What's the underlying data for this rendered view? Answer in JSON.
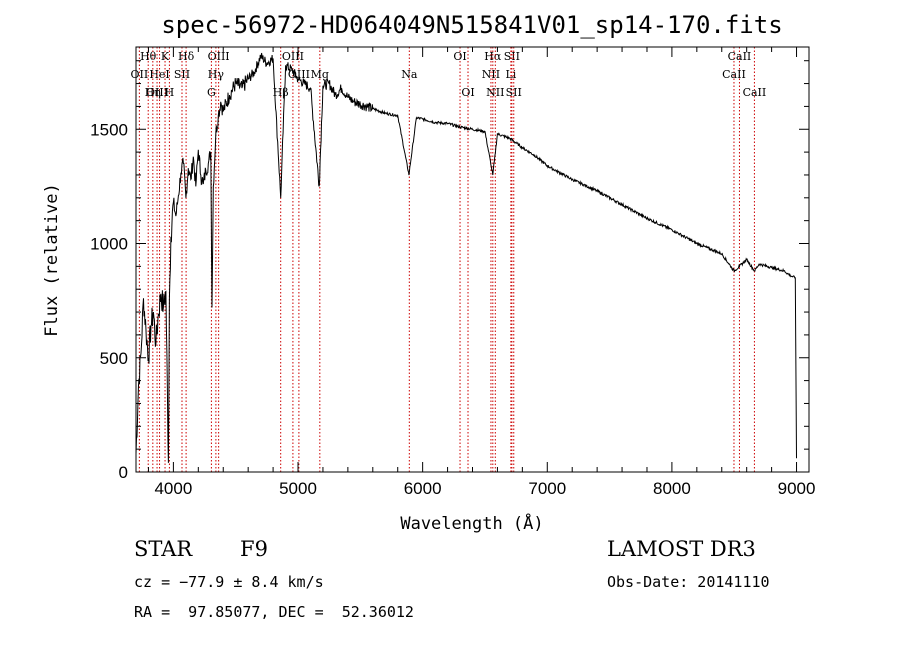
{
  "chart_data": {
    "type": "line",
    "title": "spec-56972-HD064049N515841V01_sp14-170.fits",
    "xlabel": "Wavelength (Å)",
    "ylabel": "Flux (relative)",
    "xlim": [
      3700,
      9100
    ],
    "ylim": [
      0,
      1860
    ],
    "xticks": [
      4000,
      5000,
      6000,
      7000,
      8000,
      9000
    ],
    "xtick_labels": [
      "4000",
      "5000",
      "6000",
      "7000",
      "8000",
      "9000"
    ],
    "yticks": [
      0,
      500,
      1000,
      1500
    ],
    "ytick_labels": [
      "0",
      "500",
      "1000",
      "1500"
    ],
    "grid": false,
    "series": [
      {
        "name": "spectrum",
        "x": [
          3700,
          3720,
          3740,
          3760,
          3780,
          3800,
          3820,
          3840,
          3860,
          3880,
          3900,
          3920,
          3940,
          3960,
          3968,
          3980,
          4000,
          4020,
          4040,
          4060,
          4080,
          4100,
          4120,
          4140,
          4160,
          4180,
          4200,
          4220,
          4240,
          4260,
          4280,
          4300,
          4310,
          4320,
          4340,
          4360,
          4380,
          4400,
          4450,
          4500,
          4550,
          4600,
          4650,
          4700,
          4750,
          4800,
          4861,
          4900,
          4950,
          5000,
          5050,
          5100,
          5170,
          5200,
          5250,
          5300,
          5350,
          5400,
          5450,
          5500,
          5550,
          5600,
          5700,
          5800,
          5890,
          5950,
          6000,
          6100,
          6200,
          6300,
          6400,
          6500,
          6563,
          6600,
          6700,
          6800,
          6900,
          7000,
          7200,
          7400,
          7600,
          7800,
          8000,
          8200,
          8400,
          8498,
          8542,
          8600,
          8662,
          8700,
          8800,
          8900,
          8950,
          8990,
          9000
        ],
        "values": [
          80,
          380,
          520,
          760,
          620,
          500,
          640,
          700,
          560,
          690,
          780,
          720,
          790,
          40,
          760,
          1030,
          1180,
          1120,
          1210,
          1310,
          1350,
          1200,
          1330,
          1280,
          1380,
          1250,
          1410,
          1300,
          1260,
          1320,
          1350,
          1400,
          720,
          1250,
          1480,
          1560,
          1620,
          1580,
          1650,
          1700,
          1680,
          1720,
          1750,
          1820,
          1790,
          1810,
          1200,
          1780,
          1760,
          1720,
          1700,
          1680,
          1250,
          1690,
          1700,
          1650,
          1680,
          1640,
          1620,
          1610,
          1600,
          1590,
          1570,
          1560,
          1300,
          1550,
          1545,
          1530,
          1525,
          1510,
          1500,
          1490,
          1300,
          1480,
          1460,
          1420,
          1385,
          1340,
          1280,
          1230,
          1170,
          1110,
          1060,
          1000,
          955,
          880,
          900,
          930,
          880,
          910,
          895,
          880,
          860,
          850,
          60
        ]
      }
    ],
    "lines": [
      {
        "label": "Hθ",
        "x": 3798,
        "row": 0
      },
      {
        "label": "K",
        "x": 3933,
        "row": 0
      },
      {
        "label": "Hδ",
        "x": 4102,
        "row": 0
      },
      {
        "label": "OII",
        "x": 3727,
        "row": 1
      },
      {
        "label": "HeI",
        "x": 3889,
        "row": 1
      },
      {
        "label": "SII",
        "x": 4069,
        "row": 1
      },
      {
        "label": "OIII",
        "x": 3869,
        "row": 2
      },
      {
        "label": "Hη",
        "x": 3835,
        "row": 2
      },
      {
        "label": "H",
        "x": 3968,
        "row": 2
      },
      {
        "label": "OIII",
        "x": 4363,
        "row": 0
      },
      {
        "label": "Hγ",
        "x": 4341,
        "row": 1
      },
      {
        "label": "G",
        "x": 4305,
        "row": 2
      },
      {
        "label": "OIII",
        "x": 4959,
        "row": 0
      },
      {
        "label": "OIII",
        "x": 5007,
        "row": 1
      },
      {
        "label": "Hβ",
        "x": 4861,
        "row": 2
      },
      {
        "label": "Mg",
        "x": 5175,
        "row": 1
      },
      {
        "label": "Na",
        "x": 5893,
        "row": 1
      },
      {
        "label": "OI",
        "x": 6300,
        "row": 0
      },
      {
        "label": "OI",
        "x": 6364,
        "row": 2
      },
      {
        "label": "Hα",
        "x": 6563,
        "row": 0
      },
      {
        "label": "NII",
        "x": 6548,
        "row": 1
      },
      {
        "label": "NII",
        "x": 6583,
        "row": 2
      },
      {
        "label": "SII",
        "x": 6716,
        "row": 0
      },
      {
        "label": "Li",
        "x": 6708,
        "row": 1
      },
      {
        "label": "SII",
        "x": 6731,
        "row": 2
      },
      {
        "label": "CaII",
        "x": 8542,
        "row": 0
      },
      {
        "label": "CaII",
        "x": 8498,
        "row": 1
      },
      {
        "label": "CaII",
        "x": 8662,
        "row": 2
      }
    ],
    "line_color": "#cc0000"
  },
  "info": {
    "class_label": "STAR",
    "subclass": "F9",
    "survey": "LAMOST DR3",
    "cz_text": "cz = −77.9 ± 8.4 km/s",
    "obs_date_text": "Obs-Date: 20141110",
    "radec_text": "RA =  97.85077, DEC =  52.36012"
  }
}
